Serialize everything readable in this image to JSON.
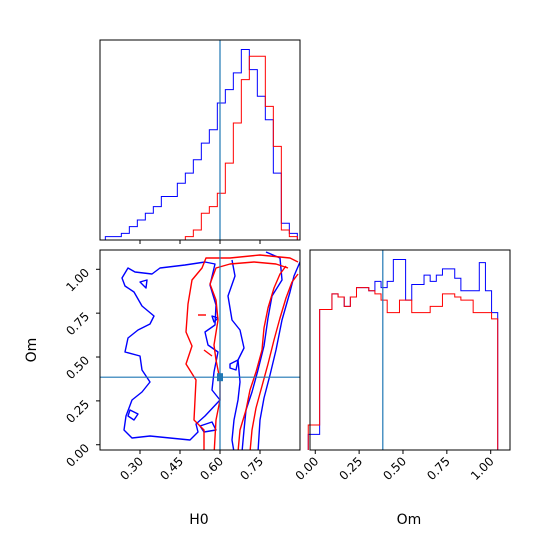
{
  "chart_data": {
    "type": "corner",
    "parameters": [
      "H0",
      "Om"
    ],
    "truth": {
      "H0": 0.6,
      "Om": 0.385
    },
    "ranges": {
      "H0": [
        0.15,
        0.9
      ],
      "Om": [
        -0.03,
        1.11
      ]
    },
    "ticks": {
      "H0": {
        "values": [
          0.3,
          0.45,
          0.6,
          0.75
        ],
        "labels": [
          "0.30",
          "0.45",
          "0.60",
          "0.75"
        ]
      },
      "Om": {
        "values": [
          0.0,
          0.25,
          0.5,
          0.75,
          1.0
        ],
        "labels": [
          "0.00",
          "0.25",
          "0.50",
          "0.75",
          "1.00"
        ]
      }
    },
    "xlabels": {
      "H0": "H0",
      "Om": "Om"
    },
    "ylabel": "Om",
    "series": [
      {
        "color": "#0000ff",
        "hist_H0": {
          "edges": [
            0.17,
            0.2,
            0.23,
            0.26,
            0.29,
            0.32,
            0.35,
            0.38,
            0.41,
            0.44,
            0.47,
            0.5,
            0.53,
            0.56,
            0.59,
            0.62,
            0.65,
            0.68,
            0.71,
            0.74,
            0.77,
            0.8,
            0.83,
            0.86,
            0.89
          ],
          "counts": [
            1,
            1,
            2,
            4,
            6,
            8,
            10,
            13,
            13,
            17,
            20,
            24,
            29,
            33,
            41,
            45,
            50,
            57,
            51,
            43,
            36,
            20,
            5,
            2
          ]
        },
        "hist_Om": {
          "edges": [
            -0.04,
            0.025,
            0.06,
            0.095,
            0.13,
            0.165,
            0.2,
            0.235,
            0.27,
            0.305,
            0.34,
            0.375,
            0.41,
            0.445,
            0.48,
            0.515,
            0.55,
            0.585,
            0.62,
            0.655,
            0.69,
            0.725,
            0.76,
            0.795,
            0.83,
            0.865,
            0.9,
            0.935,
            0.97,
            1.005,
            1.04,
            1.11
          ],
          "counts": [
            5,
            45,
            45,
            50,
            49,
            46,
            49,
            52,
            52,
            51,
            54,
            52,
            54,
            61,
            61,
            48,
            53,
            53,
            56,
            54,
            56,
            58,
            58,
            55,
            51,
            51,
            51,
            60,
            51,
            44,
            0
          ]
        }
      },
      {
        "color": "#ff0000",
        "hist_H0": {
          "edges": [
            0.17,
            0.2,
            0.23,
            0.26,
            0.29,
            0.32,
            0.35,
            0.38,
            0.41,
            0.44,
            0.47,
            0.5,
            0.53,
            0.56,
            0.59,
            0.62,
            0.65,
            0.68,
            0.71,
            0.74,
            0.77,
            0.8,
            0.83,
            0.86,
            0.89
          ],
          "counts": [
            0,
            0,
            0,
            0,
            0,
            0,
            0,
            0,
            0,
            0,
            1,
            3,
            8,
            10,
            14,
            23,
            35,
            48,
            55,
            55,
            40,
            28,
            3,
            1
          ]
        },
        "hist_Om": {
          "edges": [
            -0.04,
            0.025,
            0.06,
            0.095,
            0.13,
            0.165,
            0.2,
            0.235,
            0.27,
            0.305,
            0.34,
            0.375,
            0.41,
            0.445,
            0.48,
            0.515,
            0.55,
            0.585,
            0.62,
            0.655,
            0.69,
            0.725,
            0.76,
            0.795,
            0.83,
            0.865,
            0.9,
            0.935,
            0.97,
            1.005,
            1.04,
            1.11
          ],
          "counts": [
            8,
            45,
            45,
            50,
            49,
            46,
            49,
            52,
            52,
            51,
            50,
            48,
            44,
            44,
            48,
            48,
            44,
            44,
            44,
            46,
            46,
            50,
            50,
            49,
            48,
            48,
            44,
            44,
            44,
            42,
            0
          ]
        }
      }
    ]
  }
}
